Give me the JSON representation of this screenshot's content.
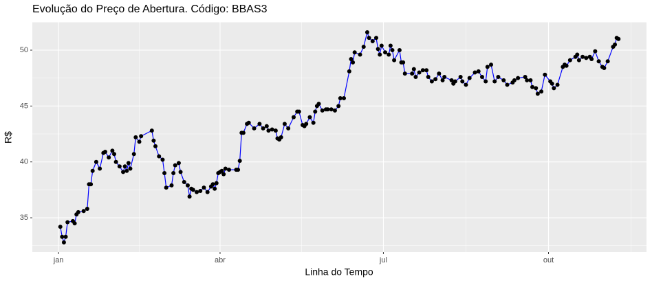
{
  "chart_data": {
    "type": "line",
    "title": "Evolução do Preço de Abertura. Código: BBAS3",
    "x_label": "Linha do Tempo",
    "y_label": "R$",
    "line_color": "#0000ff",
    "point_color": "#000000",
    "grid": true,
    "xlim": [
      -14.6,
      327.6
    ],
    "xticks": [
      {
        "value": 0,
        "label": "jan"
      },
      {
        "value": 90,
        "label": "abr"
      },
      {
        "value": 181,
        "label": "jul"
      },
      {
        "value": 273,
        "label": "out"
      }
    ],
    "ylim": [
      31.93,
      52.52
    ],
    "yticks": [
      35,
      40,
      45,
      50
    ],
    "x": [
      1,
      2,
      3,
      4,
      5,
      8,
      9,
      10,
      11,
      14,
      16,
      17,
      18,
      19,
      21,
      23,
      25,
      26,
      28,
      30,
      31,
      32,
      34,
      36,
      37,
      38,
      39,
      40,
      42,
      43,
      45,
      46,
      52,
      53,
      54,
      56,
      58,
      59,
      60,
      63,
      64,
      65,
      67,
      68,
      70,
      72,
      73,
      74,
      75,
      77,
      79,
      81,
      83,
      85,
      86,
      87,
      88,
      89,
      90,
      91,
      92,
      93,
      95,
      99,
      100,
      101,
      102,
      103,
      105,
      106,
      109,
      112,
      114,
      116,
      117,
      119,
      121,
      122,
      123,
      124,
      126,
      128,
      131,
      133,
      134,
      136,
      137,
      138,
      140,
      142,
      143,
      144,
      145,
      147,
      149,
      150,
      152,
      154,
      156,
      157,
      159,
      162,
      163,
      164,
      165,
      168,
      170,
      172,
      173,
      175,
      177,
      178,
      179,
      180,
      182,
      184,
      185,
      186,
      187,
      190,
      191,
      192,
      193,
      197,
      198,
      199,
      201,
      203,
      205,
      206,
      208,
      210,
      212,
      214,
      215,
      219,
      220,
      221,
      224,
      225,
      227,
      229,
      232,
      234,
      236,
      238,
      239,
      241,
      243,
      245,
      248,
      250,
      253,
      254,
      256,
      260,
      261,
      263,
      264,
      266,
      267,
      269,
      271,
      274,
      275,
      276,
      278,
      281,
      282,
      283,
      285,
      288,
      289,
      290,
      292,
      294,
      296,
      297,
      299,
      301,
      303,
      304,
      306,
      309,
      310,
      311,
      312
    ],
    "values": [
      34.2,
      33.3,
      32.8,
      33.3,
      34.6,
      34.7,
      34.5,
      35.3,
      35.5,
      35.6,
      35.8,
      38,
      38,
      39.2,
      40,
      39.4,
      40.8,
      40.9,
      40.4,
      41,
      40.7,
      40,
      39.6,
      39.1,
      39.6,
      39.2,
      39.9,
      39.4,
      40.7,
      42.2,
      41.8,
      42.3,
      42.8,
      41.9,
      41.4,
      40.5,
      40.2,
      39,
      37.7,
      37.9,
      39,
      39.7,
      39.9,
      39.1,
      38.2,
      37.9,
      36.9,
      37.6,
      37.5,
      37.3,
      37.4,
      37.7,
      37.3,
      37.8,
      38,
      37.6,
      38.1,
      39,
      39.1,
      39.2,
      38.9,
      39.4,
      39.3,
      39.3,
      39.3,
      40.1,
      42.6,
      42.6,
      43.4,
      43.5,
      43,
      43.4,
      43,
      43.2,
      42.8,
      42.9,
      42.8,
      42.1,
      42,
      42.2,
      43.4,
      43,
      44,
      44.5,
      44.5,
      43.3,
      43.2,
      43.4,
      44,
      43.5,
      44.5,
      45,
      45.2,
      44.6,
      44.7,
      44.7,
      44.7,
      44.6,
      45,
      45.7,
      45.7,
      48.1,
      49.2,
      48.9,
      49.8,
      49.6,
      50.3,
      51.6,
      51.1,
      50.8,
      51.1,
      50.1,
      49.6,
      50.4,
      49.8,
      49.6,
      50.4,
      50,
      49.1,
      50,
      48.9,
      48.9,
      47.9,
      47.9,
      48.3,
      47.6,
      48,
      48.2,
      48.2,
      47.6,
      47.2,
      47.4,
      47.9,
      47.3,
      47.6,
      47.3,
      47,
      47.2,
      47.6,
      47.2,
      46.9,
      47.5,
      48,
      48.1,
      47.6,
      47.2,
      48.5,
      48.7,
      47.2,
      47.6,
      47.3,
      46.9,
      47.1,
      47.3,
      47.5,
      47.6,
      47.3,
      47.3,
      46.7,
      46.6,
      46.1,
      46.3,
      47.8,
      47.2,
      47,
      46.6,
      46.9,
      48.5,
      48.7,
      48.6,
      49.1,
      49.4,
      49.6,
      49.1,
      49.4,
      49.3,
      49.4,
      49.2,
      49.9,
      49,
      48.5,
      48.4,
      49,
      50.3,
      50.5,
      51.1,
      51
    ]
  }
}
